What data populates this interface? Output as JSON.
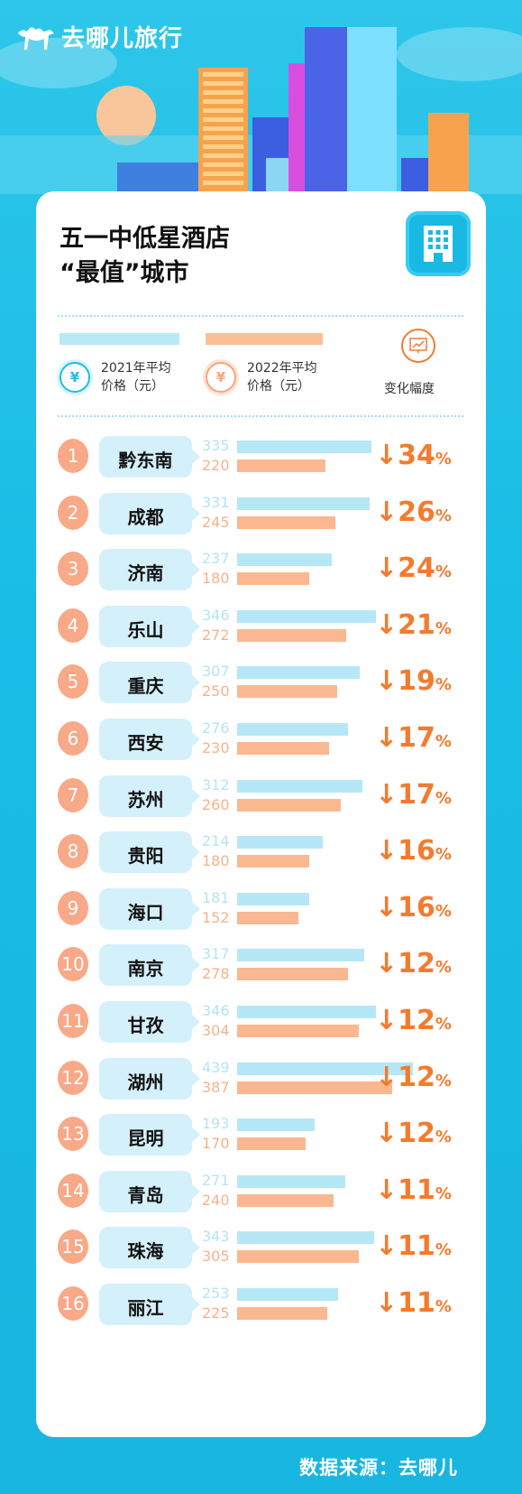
{
  "logo": {
    "brand": "去哪儿旅行",
    "icon": "camel-icon"
  },
  "card": {
    "title_line1": "五一中低星酒店",
    "title_line2": "“最值”城市",
    "badge_icon": "hotel-building-icon"
  },
  "legend": {
    "label_2021_line1": "2021年平均",
    "label_2021_line2": "价格（元）",
    "label_2022_line1": "2022年平均",
    "label_2022_line2": "价格（元）",
    "yen_symbol": "¥",
    "change_label": "变化幅度",
    "color_2021": "#b5e7f7",
    "color_2022": "#fbb890"
  },
  "chart_data": {
    "type": "bar",
    "title": "五一中低星酒店“最值”城市",
    "categories": [
      "黔东南",
      "成都",
      "济南",
      "乐山",
      "重庆",
      "西安",
      "苏州",
      "贵阳",
      "海口",
      "南京",
      "甘孜",
      "湖州",
      "昆明",
      "青岛",
      "珠海",
      "丽江"
    ],
    "ranks": [
      "1",
      "2",
      "3",
      "4",
      "5",
      "6",
      "7",
      "8",
      "9",
      "10",
      "11",
      "12",
      "13",
      "14",
      "15",
      "16"
    ],
    "series": [
      {
        "name": "2021年平均价格（元）",
        "values": [
          335,
          331,
          237,
          346,
          307,
          276,
          312,
          214,
          181,
          317,
          346,
          439,
          193,
          271,
          343,
          253
        ]
      },
      {
        "name": "2022年平均价格（元）",
        "values": [
          220,
          245,
          180,
          272,
          250,
          230,
          260,
          180,
          152,
          278,
          304,
          387,
          170,
          240,
          305,
          225
        ]
      }
    ],
    "change": [
      "34",
      "26",
      "24",
      "21",
      "19",
      "17",
      "17",
      "16",
      "16",
      "12",
      "12",
      "12",
      "12",
      "11",
      "11",
      "11"
    ],
    "change_arrow": "↓",
    "change_unit": "%"
  },
  "source": "数据来源：去哪儿"
}
